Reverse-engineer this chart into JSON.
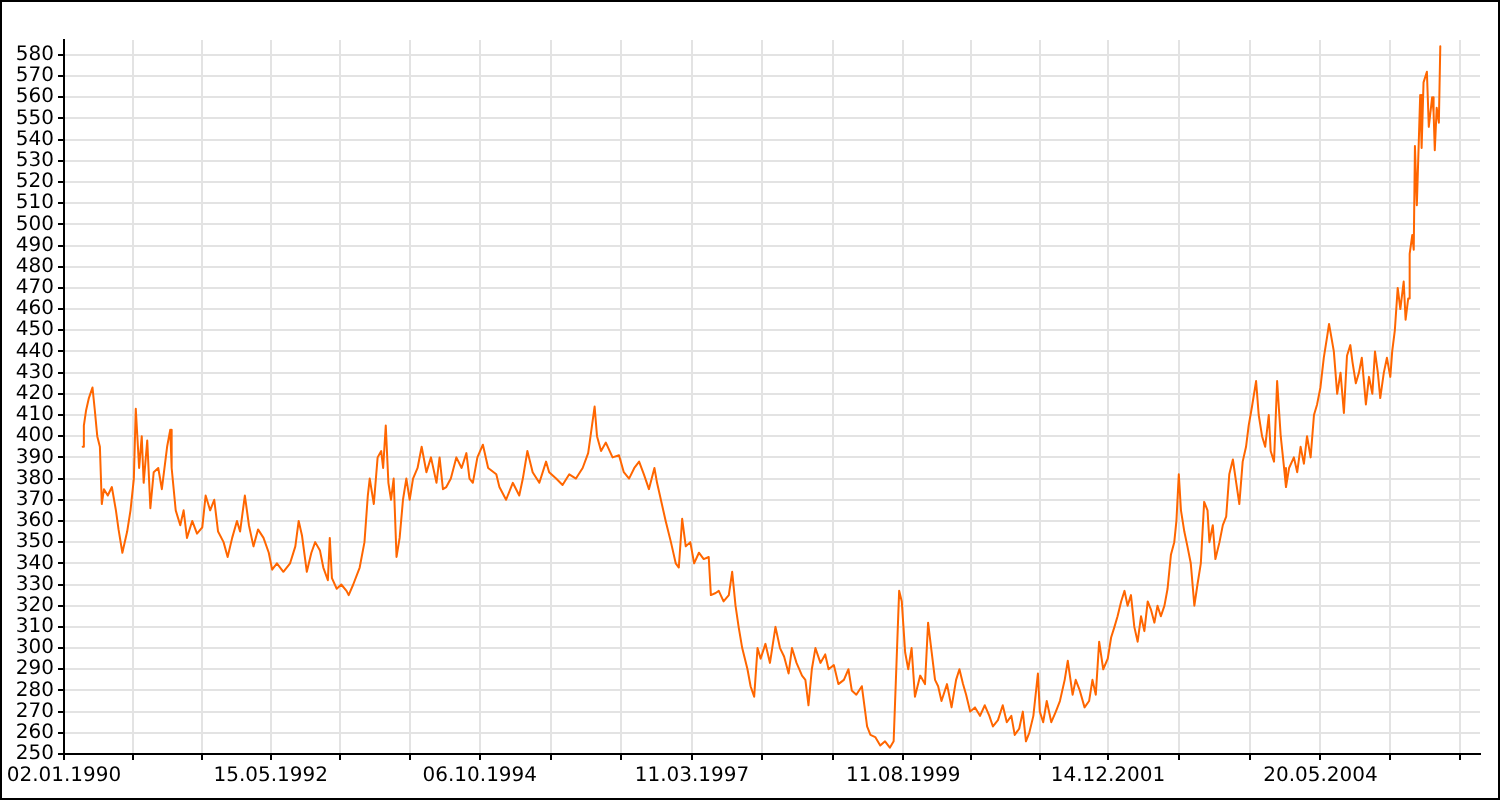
{
  "chart_data": {
    "type": "line",
    "x": [
      "1990-03-21",
      "1990-03-26",
      "1990-04-04",
      "1990-04-16",
      "1990-05-01",
      "1990-05-11",
      "1990-05-21",
      "1990-06-01",
      "1990-06-09",
      "1990-06-18",
      "1990-07-04",
      "1990-07-21",
      "1990-08-07",
      "1990-08-18",
      "1990-09-03",
      "1990-09-23",
      "1990-10-07",
      "1990-10-21",
      "1990-10-29",
      "1990-11-12",
      "1990-11-23",
      "1990-12-01",
      "1990-12-16",
      "1990-12-29",
      "1991-01-12",
      "1991-01-31",
      "1991-02-15",
      "1991-03-09",
      "1991-03-22",
      "1991-03-28",
      "1991-04-14",
      "1991-05-03",
      "1991-05-17",
      "1991-05-31",
      "1991-06-22",
      "1991-07-12",
      "1991-08-03",
      "1991-08-17",
      "1991-09-05",
      "1991-09-22",
      "1991-10-08",
      "1991-10-31",
      "1991-11-17",
      "1991-12-06",
      "1991-12-26",
      "1992-01-08",
      "1992-01-28",
      "1992-02-14",
      "1992-03-04",
      "1992-03-23",
      "1992-04-15",
      "1992-05-07",
      "1992-05-21",
      "1992-06-10",
      "1992-07-07",
      "1992-08-04",
      "1992-08-26",
      "1992-09-09",
      "1992-09-23",
      "1992-10-13",
      "1992-11-01",
      "1992-11-17",
      "1992-12-07",
      "1992-12-21",
      "1993-01-09",
      "1993-01-17",
      "1993-01-26",
      "1993-02-15",
      "1993-03-06",
      "1993-03-28",
      "1993-04-06",
      "1993-04-25",
      "1993-05-22",
      "1993-06-11",
      "1993-06-25",
      "1993-07-03",
      "1993-07-20",
      "1993-08-05",
      "1993-08-20",
      "1993-08-28",
      "1993-09-08",
      "1993-09-19",
      "1993-09-30",
      "1993-10-11",
      "1993-10-23",
      "1993-11-05",
      "1993-11-19",
      "1993-12-03",
      "1993-12-17",
      "1993-12-31",
      "1994-01-19",
      "1994-02-05",
      "1994-02-25",
      "1994-03-16",
      "1994-04-08",
      "1994-04-21",
      "1994-05-05",
      "1994-05-19",
      "1994-06-07",
      "1994-06-30",
      "1994-07-22",
      "1994-08-11",
      "1994-08-24",
      "1994-09-07",
      "1994-09-26",
      "1994-10-19",
      "1994-11-10",
      "1994-12-14",
      "1994-12-27",
      "1995-01-24",
      "1995-02-21",
      "1995-03-20",
      "1995-04-04",
      "1995-04-23",
      "1995-05-15",
      "1995-06-12",
      "1995-07-10",
      "1995-07-23",
      "1995-08-21",
      "1995-09-17",
      "1995-10-15",
      "1995-11-12",
      "1995-12-10",
      "1996-01-02",
      "1996-01-12",
      "1996-01-29",
      "1996-02-08",
      "1996-02-25",
      "1996-03-16",
      "1996-04-13",
      "1996-05-10",
      "1996-05-30",
      "1996-06-21",
      "1996-07-13",
      "1996-08-02",
      "1996-08-22",
      "1996-09-12",
      "1996-10-05",
      "1996-10-16",
      "1996-11-01",
      "1996-11-21",
      "1996-12-13",
      "1997-01-02",
      "1997-01-15",
      "1997-01-29",
      "1997-02-13",
      "1997-03-04",
      "1997-03-20",
      "1997-04-09",
      "1997-04-29",
      "1997-05-20",
      "1997-05-29",
      "1997-06-18",
      "1997-07-01",
      "1997-07-21",
      "1997-08-12",
      "1997-08-26",
      "1997-09-09",
      "1997-09-22",
      "1997-10-07",
      "1997-10-29",
      "1997-11-11",
      "1997-11-26",
      "1997-12-10",
      "1997-12-23",
      "1998-01-12",
      "1998-01-31",
      "1998-02-23",
      "1998-03-14",
      "1998-03-31",
      "1998-04-19",
      "1998-05-03",
      "1998-05-22",
      "1998-06-14",
      "1998-06-28",
      "1998-07-11",
      "1998-07-25",
      "1998-08-09",
      "1998-08-30",
      "1998-09-19",
      "1998-10-03",
      "1998-10-25",
      "1998-11-13",
      "1998-12-06",
      "1998-12-25",
      "1999-01-08",
      "1999-01-27",
      "1999-02-19",
      "1999-03-05",
      "1999-03-13",
      "1999-03-27",
      "1999-04-16",
      "1999-05-07",
      "1999-05-27",
      "1999-06-16",
      "1999-07-02",
      "1999-07-13",
      "1999-07-25",
      "1999-08-05",
      "1999-08-19",
      "1999-09-01",
      "1999-09-15",
      "1999-09-29",
      "1999-10-21",
      "1999-11-10",
      "1999-11-23",
      "1999-12-08",
      "1999-12-22",
      "2000-01-04",
      "2000-01-18",
      "2000-02-10",
      "2000-02-29",
      "2000-03-19",
      "2000-04-02",
      "2000-04-17",
      "2000-04-30",
      "2000-05-17",
      "2000-06-06",
      "2000-06-27",
      "2000-07-17",
      "2000-08-05",
      "2000-08-20",
      "2000-09-10",
      "2000-09-30",
      "2000-10-17",
      "2000-11-05",
      "2000-11-19",
      "2000-12-08",
      "2000-12-23",
      "2001-01-05",
      "2001-01-19",
      "2001-02-05",
      "2001-02-24",
      "2001-03-04",
      "2001-03-18",
      "2001-04-02",
      "2001-04-21",
      "2001-05-10",
      "2001-05-27",
      "2001-06-16",
      "2001-06-29",
      "2001-07-19",
      "2001-08-01",
      "2001-08-18",
      "2001-09-07",
      "2001-09-26",
      "2001-10-10",
      "2001-10-24",
      "2001-11-07",
      "2001-11-24",
      "2001-12-13",
      "2001-12-27",
      "2002-01-10",
      "2002-01-23",
      "2002-02-07",
      "2002-02-21",
      "2002-03-06",
      "2002-03-20",
      "2002-04-03",
      "2002-04-17",
      "2002-05-01",
      "2002-05-15",
      "2002-05-29",
      "2002-06-12",
      "2002-06-26",
      "2002-07-09",
      "2002-07-23",
      "2002-08-07",
      "2002-08-20",
      "2002-09-03",
      "2002-09-17",
      "2002-09-26",
      "2002-10-06",
      "2002-10-15",
      "2002-10-29",
      "2002-11-11",
      "2002-11-25",
      "2002-12-10",
      "2002-12-23",
      "2003-01-06",
      "2003-01-20",
      "2003-02-03",
      "2003-02-11",
      "2003-02-25",
      "2003-03-08",
      "2003-03-25",
      "2003-04-08",
      "2003-04-22",
      "2003-05-05",
      "2003-05-20",
      "2003-06-03",
      "2003-06-16",
      "2003-06-30",
      "2003-07-14",
      "2003-07-25",
      "2003-08-08",
      "2003-08-25",
      "2003-09-05",
      "2003-09-19",
      "2003-10-02",
      "2003-10-17",
      "2003-10-25",
      "2003-11-08",
      "2003-11-21",
      "2003-12-06",
      "2003-12-20",
      "2003-12-28",
      "2004-01-10",
      "2004-01-30",
      "2004-02-13",
      "2004-02-27",
      "2004-03-12",
      "2004-03-25",
      "2004-04-09",
      "2004-04-23",
      "2004-05-06",
      "2004-05-20",
      "2004-06-03",
      "2004-06-17",
      "2004-06-25",
      "2004-07-15",
      "2004-07-29",
      "2004-08-12",
      "2004-08-26",
      "2004-09-08",
      "2004-09-22",
      "2004-10-01",
      "2004-10-15",
      "2004-10-28",
      "2004-11-09",
      "2004-11-26",
      "2004-12-09",
      "2004-12-23",
      "2005-01-03",
      "2005-01-15",
      "2005-01-25",
      "2005-02-09",
      "2005-02-22",
      "2005-03-08",
      "2005-03-16",
      "2005-03-27",
      "2005-04-08",
      "2005-04-19",
      "2005-05-03",
      "2005-05-11",
      "2005-05-22",
      "2005-05-28",
      "2005-06-08",
      "2005-06-14",
      "2005-06-19",
      "2005-06-27",
      "2005-07-11",
      "2005-07-17",
      "2005-07-25",
      "2005-08-08",
      "2005-08-16",
      "2005-08-30",
      "2005-09-05",
      "2005-09-10",
      "2005-09-18",
      "2005-09-27",
      "2005-10-03"
    ],
    "values": [
      395,
      405,
      412,
      418,
      423,
      412,
      400,
      395,
      368,
      375,
      372,
      376,
      365,
      356,
      345,
      355,
      365,
      380,
      413,
      385,
      400,
      378,
      398,
      366,
      383,
      385,
      375,
      395,
      403,
      385,
      365,
      358,
      365,
      352,
      360,
      354,
      357,
      372,
      365,
      370,
      355,
      350,
      343,
      352,
      360,
      355,
      372,
      358,
      348,
      356,
      352,
      345,
      337,
      340,
      336,
      340,
      348,
      360,
      353,
      336,
      345,
      350,
      346,
      338,
      332,
      352,
      333,
      328,
      330,
      327,
      325,
      330,
      338,
      350,
      372,
      380,
      368,
      390,
      393,
      385,
      405,
      378,
      370,
      380,
      343,
      352,
      370,
      380,
      370,
      380,
      385,
      395,
      383,
      390,
      378,
      390,
      375,
      376,
      380,
      390,
      385,
      392,
      380,
      378,
      390,
      396,
      385,
      382,
      376,
      370,
      378,
      372,
      380,
      393,
      383,
      378,
      388,
      383,
      380,
      377,
      382,
      380,
      385,
      392,
      400,
      414,
      400,
      393,
      397,
      390,
      391,
      383,
      380,
      385,
      388,
      382,
      375,
      385,
      378,
      370,
      360,
      350,
      340,
      338,
      361,
      348,
      350,
      340,
      345,
      342,
      343,
      325,
      326,
      327,
      322,
      325,
      336,
      320,
      310,
      300,
      290,
      282,
      277,
      300,
      295,
      302,
      293,
      310,
      300,
      296,
      288,
      300,
      293,
      287,
      285,
      273,
      290,
      300,
      293,
      297,
      290,
      292,
      283,
      285,
      290,
      280,
      278,
      282,
      270,
      263,
      259,
      258,
      254,
      256,
      253,
      256,
      290,
      327,
      322,
      298,
      290,
      300,
      277,
      287,
      283,
      312,
      298,
      285,
      282,
      275,
      283,
      272,
      285,
      290,
      283,
      278,
      270,
      272,
      268,
      273,
      268,
      263,
      266,
      273,
      265,
      268,
      259,
      262,
      270,
      256,
      260,
      268,
      288,
      270,
      265,
      275,
      265,
      270,
      275,
      285,
      294,
      278,
      285,
      280,
      272,
      275,
      285,
      278,
      303,
      290,
      295,
      305,
      310,
      315,
      322,
      327,
      320,
      325,
      310,
      303,
      315,
      308,
      322,
      318,
      312,
      320,
      315,
      320,
      328,
      344,
      350,
      360,
      382,
      365,
      355,
      348,
      340,
      320,
      330,
      340,
      369,
      365,
      350,
      358,
      342,
      350,
      358,
      362,
      382,
      389,
      378,
      368,
      388,
      395,
      405,
      414,
      426,
      410,
      400,
      395,
      410,
      393,
      388,
      426,
      400,
      385,
      376,
      385,
      390,
      383,
      395,
      387,
      400,
      390,
      410,
      415,
      423,
      437,
      447,
      453,
      440,
      420,
      430,
      411,
      438,
      443,
      435,
      425,
      430,
      437,
      415,
      428,
      420,
      440,
      430,
      418,
      430,
      437,
      428,
      440,
      450,
      470,
      460,
      473,
      455,
      465,
      486,
      495,
      488,
      537,
      509,
      561,
      536,
      567,
      572,
      546,
      560,
      553,
      535,
      555,
      548,
      584
    ],
    "color": "#ff6600",
    "xlim": [
      "1990-01-02",
      "2006-03-18"
    ],
    "xticks": [
      {
        "value": "1990-01-02",
        "label": "02.01.1990"
      },
      {
        "value": "1990-10-17",
        "label": null
      },
      {
        "value": "1991-08-01",
        "label": null
      },
      {
        "value": "1992-05-15",
        "label": "15.05.1992"
      },
      {
        "value": "1993-03-02",
        "label": null
      },
      {
        "value": "1993-12-19",
        "label": null
      },
      {
        "value": "1994-10-06",
        "label": "06.10.1994"
      },
      {
        "value": "1995-07-29",
        "label": null
      },
      {
        "value": "1996-05-20",
        "label": null
      },
      {
        "value": "1997-03-11",
        "label": "11.03.1997"
      },
      {
        "value": "1997-12-30",
        "label": null
      },
      {
        "value": "1998-10-20",
        "label": null
      },
      {
        "value": "1999-08-11",
        "label": "11.08.1999"
      },
      {
        "value": "2000-05-22",
        "label": null
      },
      {
        "value": "2001-03-03",
        "label": null
      },
      {
        "value": "2001-12-14",
        "label": "14.12.2001"
      },
      {
        "value": "2002-10-06",
        "label": null
      },
      {
        "value": "2003-07-29",
        "label": null
      },
      {
        "value": "2004-05-20",
        "label": "20.05.2004"
      },
      {
        "value": "2005-03-08",
        "label": null
      },
      {
        "value": "2005-12-25",
        "label": null
      }
    ],
    "ylim": [
      250,
      587
    ],
    "yticks": [
      250,
      260,
      270,
      280,
      290,
      300,
      310,
      320,
      330,
      340,
      350,
      360,
      370,
      380,
      390,
      400,
      410,
      420,
      430,
      440,
      450,
      460,
      470,
      480,
      490,
      500,
      510,
      520,
      530,
      540,
      550,
      560,
      570,
      580
    ],
    "grid": true
  }
}
